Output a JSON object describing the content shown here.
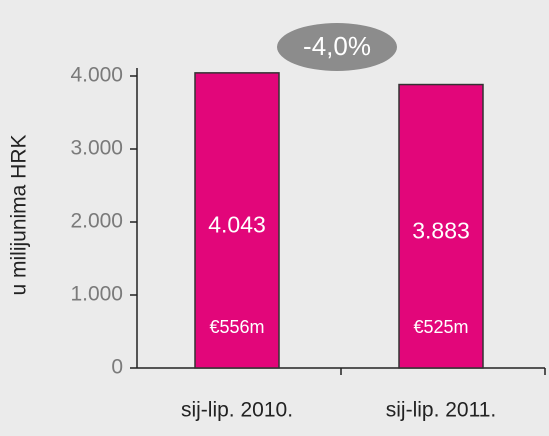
{
  "chart_data": {
    "type": "bar",
    "badge": "-4,0%",
    "y_label": "u milijunima HRK",
    "categories": [
      "sij-lip. 2010.",
      "sij-lip. 2011."
    ],
    "values": [
      4043,
      3883
    ],
    "value_labels": [
      "4.043",
      "3.883"
    ],
    "secondary_labels": [
      "€556m",
      "€525m"
    ],
    "color": "#e2067a",
    "ylim": [
      0,
      4000
    ],
    "yticks": [
      0,
      {
        "value": 1000,
        "label": "1.000"
      },
      {
        "value": 2000,
        "label": "2.000"
      },
      {
        "value": 3000,
        "label": "3.000"
      },
      {
        "value": 4000,
        "label": "4.000"
      }
    ]
  }
}
